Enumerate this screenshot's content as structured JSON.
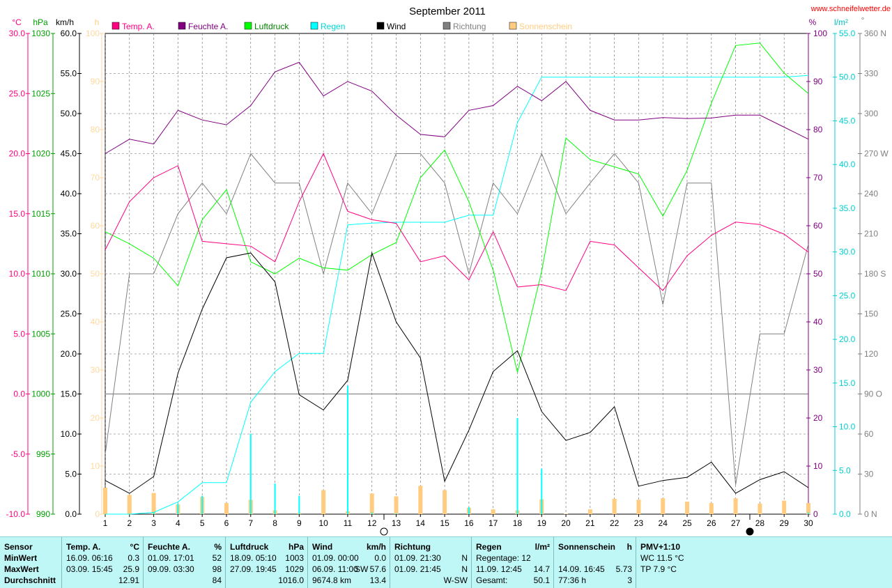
{
  "header": {
    "title": "September 2011",
    "site": "www.schneifelwetter.de"
  },
  "legend": [
    {
      "label": "Temp. A.",
      "color": "#ff0080"
    },
    {
      "label": "Feuchte A.",
      "color": "#800080"
    },
    {
      "label": "Luftdruck",
      "color": "#00ff00"
    },
    {
      "label": "Regen",
      "color": "#00ffff"
    },
    {
      "label": "Wind",
      "color": "#000000"
    },
    {
      "label": "Richtung",
      "color": "#808080"
    },
    {
      "label": "Sonnenschein",
      "color": "#ffcc80"
    }
  ],
  "axis_units": {
    "temp": "°C",
    "pressure": "hPa",
    "wind": "km/h",
    "sun": "h",
    "humidity": "%",
    "rain": "l/m²",
    "direction": "°"
  },
  "chart_data": {
    "type": "line",
    "title": "September 2011",
    "x": [
      1,
      2,
      3,
      4,
      5,
      6,
      7,
      8,
      9,
      10,
      11,
      12,
      13,
      14,
      15,
      16,
      17,
      18,
      19,
      20,
      21,
      22,
      23,
      24,
      25,
      26,
      27,
      28,
      29,
      30
    ],
    "axes": {
      "temp": {
        "unit": "°C",
        "range": [
          -10,
          30
        ],
        "ticks": [
          "30.0",
          "25.0",
          "20.0",
          "15.0",
          "10.0",
          "5.0",
          "0.0",
          "-5.0",
          "-10.0"
        ]
      },
      "pressure": {
        "unit": "hPa",
        "range": [
          990,
          1030
        ],
        "ticks": [
          "1030",
          "1025",
          "1020",
          "1015",
          "1010",
          "1005",
          "1000",
          "995",
          "990"
        ]
      },
      "wind": {
        "unit": "km/h",
        "range": [
          0,
          60
        ],
        "ticks": [
          "60.0",
          "55.0",
          "50.0",
          "45.0",
          "40.0",
          "35.0",
          "30.0",
          "25.0",
          "20.0",
          "15.0",
          "10.0",
          "5.0",
          "0.0"
        ]
      },
      "sun": {
        "unit": "h",
        "range": [
          0,
          100
        ],
        "ticks": [
          "100",
          "90",
          "80",
          "70",
          "60",
          "50",
          "40",
          "30",
          "20",
          "10",
          "0"
        ]
      },
      "humidity": {
        "unit": "%",
        "range": [
          0,
          100
        ],
        "ticks": [
          "100",
          "90",
          "80",
          "70",
          "60",
          "50",
          "40",
          "30",
          "20",
          "10",
          "0"
        ]
      },
      "rain": {
        "unit": "l/m²",
        "range": [
          0,
          55
        ],
        "ticks": [
          "55.0",
          "50.0",
          "45.0",
          "40.0",
          "35.0",
          "30.0",
          "25.0",
          "20.0",
          "15.0",
          "10.0",
          "5.0",
          "0.0"
        ]
      },
      "direction": {
        "unit": "°",
        "range": [
          0,
          360
        ],
        "ticks": [
          "360 N",
          "330",
          "300",
          "270 W",
          "240",
          "210",
          "180 S",
          "150",
          "120",
          "90 O",
          "60",
          "30",
          "0 N"
        ]
      }
    },
    "series": [
      {
        "name": "Temp. A.",
        "axis": "temp",
        "color": "#ff0080",
        "values": [
          12.0,
          16.0,
          18.0,
          19.0,
          12.7,
          12.5,
          12.3,
          11.0,
          16.0,
          20.0,
          15.2,
          14.5,
          14.2,
          11.0,
          11.5,
          9.5,
          13.5,
          8.9,
          9.1,
          8.6,
          12.7,
          12.4,
          10.5,
          8.6,
          11.5,
          13.2,
          14.3,
          14.1,
          13.3,
          11.8
        ]
      },
      {
        "name": "Feuchte A.",
        "axis": "humidity",
        "color": "#800080",
        "values": [
          75,
          78,
          77,
          84,
          82,
          81,
          85,
          92,
          94,
          87,
          90,
          88,
          83,
          79,
          78.5,
          84,
          85,
          89,
          86,
          90,
          84,
          82,
          82,
          82.5,
          82.3,
          82.4,
          83,
          83,
          80.5,
          78
        ]
      },
      {
        "name": "Luftdruck",
        "axis": "pressure",
        "color": "#00ff00",
        "values": [
          1013.5,
          1012.5,
          1011.3,
          1009.0,
          1014.5,
          1017.0,
          1011.0,
          1010.0,
          1011.3,
          1010.5,
          1010.3,
          1011.6,
          1012.6,
          1018.0,
          1020.3,
          1016.0,
          1010.3,
          1001.8,
          1010.2,
          1021.3,
          1019.5,
          1018.9,
          1018.3,
          1014.8,
          1018.6,
          1024.2,
          1029.0,
          1029.2,
          1026.7,
          1025.0
        ]
      },
      {
        "name": "Wind",
        "axis": "wind",
        "color": "#000000",
        "values": [
          4.2,
          2.6,
          4.7,
          17.6,
          25.6,
          32.0,
          32.6,
          29.0,
          14.9,
          13.0,
          16.7,
          32.6,
          24.0,
          19.5,
          4.1,
          10.5,
          17.8,
          20.4,
          12.8,
          9.2,
          10.2,
          13.4,
          3.5,
          4.2,
          4.6,
          6.5,
          2.6,
          4.3,
          5.3,
          3.3
        ]
      },
      {
        "name": "Regen",
        "axis": "rain",
        "color": "#00ffff",
        "values": [
          0,
          0,
          0.2,
          1.4,
          3.6,
          3.6,
          12.8,
          16.3,
          18.4,
          18.4,
          33.1,
          33.3,
          33.4,
          33.4,
          33.4,
          34.2,
          34.2,
          44.8,
          50.0,
          50.0,
          50.0,
          50.0,
          50.0,
          50.0,
          50.0,
          50.0,
          50.0,
          50.0,
          50.0,
          50.2
        ]
      },
      {
        "name": "Richtung",
        "axis": "direction",
        "color": "#808080",
        "values": [
          45,
          180,
          180,
          225,
          248,
          225,
          270,
          248,
          248,
          180,
          248,
          225,
          270,
          270,
          248,
          180,
          248,
          225,
          270,
          225,
          248,
          270,
          248,
          157,
          248,
          248,
          22,
          135,
          135,
          202
        ]
      }
    ],
    "bars": [
      {
        "name": "Regen",
        "axis": "rain",
        "color": "#00ffff",
        "values": [
          0,
          0,
          0.2,
          1.2,
          2.1,
          0,
          9.2,
          3.5,
          2.1,
          0,
          14.7,
          0.2,
          0.1,
          0,
          0,
          0.8,
          0,
          11.0,
          5.2,
          0,
          0,
          0,
          0,
          0,
          0,
          0,
          0,
          0,
          0,
          0.2
        ]
      },
      {
        "name": "Sonnenschein",
        "axis": "sun",
        "color": "#ffcc80",
        "values": [
          5.5,
          4.0,
          4.4,
          2.0,
          3.6,
          2.3,
          3.0,
          0.8,
          0.3,
          5.0,
          0.6,
          4.3,
          3.7,
          5.9,
          5.0,
          1.3,
          1.0,
          0.8,
          3.1,
          0.1,
          1.0,
          3.2,
          3.0,
          3.3,
          2.6,
          2.3,
          3.3,
          2.2,
          2.8,
          2.3
        ]
      }
    ]
  },
  "stats": {
    "sensor": {
      "title": "Sensor",
      "rows": [
        "MinWert",
        "MaxWert",
        "Durchschnitt"
      ]
    },
    "temp": {
      "title": "Temp. A.",
      "unit": "°C",
      "min_time": "16.09.  06:16",
      "min_val": "0.3",
      "max_time": "03.09.  15:45",
      "max_val": "25.9",
      "avg_val": "12.91"
    },
    "humidity": {
      "title": "Feuchte A.",
      "unit": "%",
      "min_time": "01.09.  17:01",
      "min_val": "52",
      "max_time": "09.09.  03:30",
      "max_val": "98",
      "avg_val": "84"
    },
    "pressure": {
      "title": "Luftdruck",
      "unit": "hPa",
      "min_time": "18.09.  05:10",
      "min_val": "1003",
      "max_time": "27.09.  19:45",
      "max_val": "1029",
      "avg_val": "1016.0"
    },
    "wind": {
      "title": "Wind",
      "unit": "km/h",
      "min_time": "01.09.  00:00",
      "min_val": "0.0",
      "max_time": "06.09.  11:00",
      "max_dir": "SW",
      "max_val": "57.6",
      "avg_time": "9674.8 km",
      "avg_val": "13.4"
    },
    "direction": {
      "title": "Richtung",
      "min_time": "01.09.  21:30",
      "min_val": "N",
      "max_time": "01.09.  21:45",
      "max_val": "N",
      "avg_val": "W-SW"
    },
    "rain": {
      "title": "Regen",
      "unit": "l/m²",
      "row1": "Regentage: 12",
      "max_time": "11.09.  12:45",
      "max_val": "14.7",
      "total_label": "Gesamt:",
      "total_val": "50.1"
    },
    "sun": {
      "title": "Sonnenschein",
      "unit": "h",
      "max_time": "14.09.  16:45",
      "max_val": "5.73",
      "total_time": "77:36 h",
      "total_val": "3"
    },
    "pmv": {
      "title": "PMV+1:10",
      "wc": "WC 11.5 °C",
      "tp": "TP 7.9 °C"
    }
  }
}
